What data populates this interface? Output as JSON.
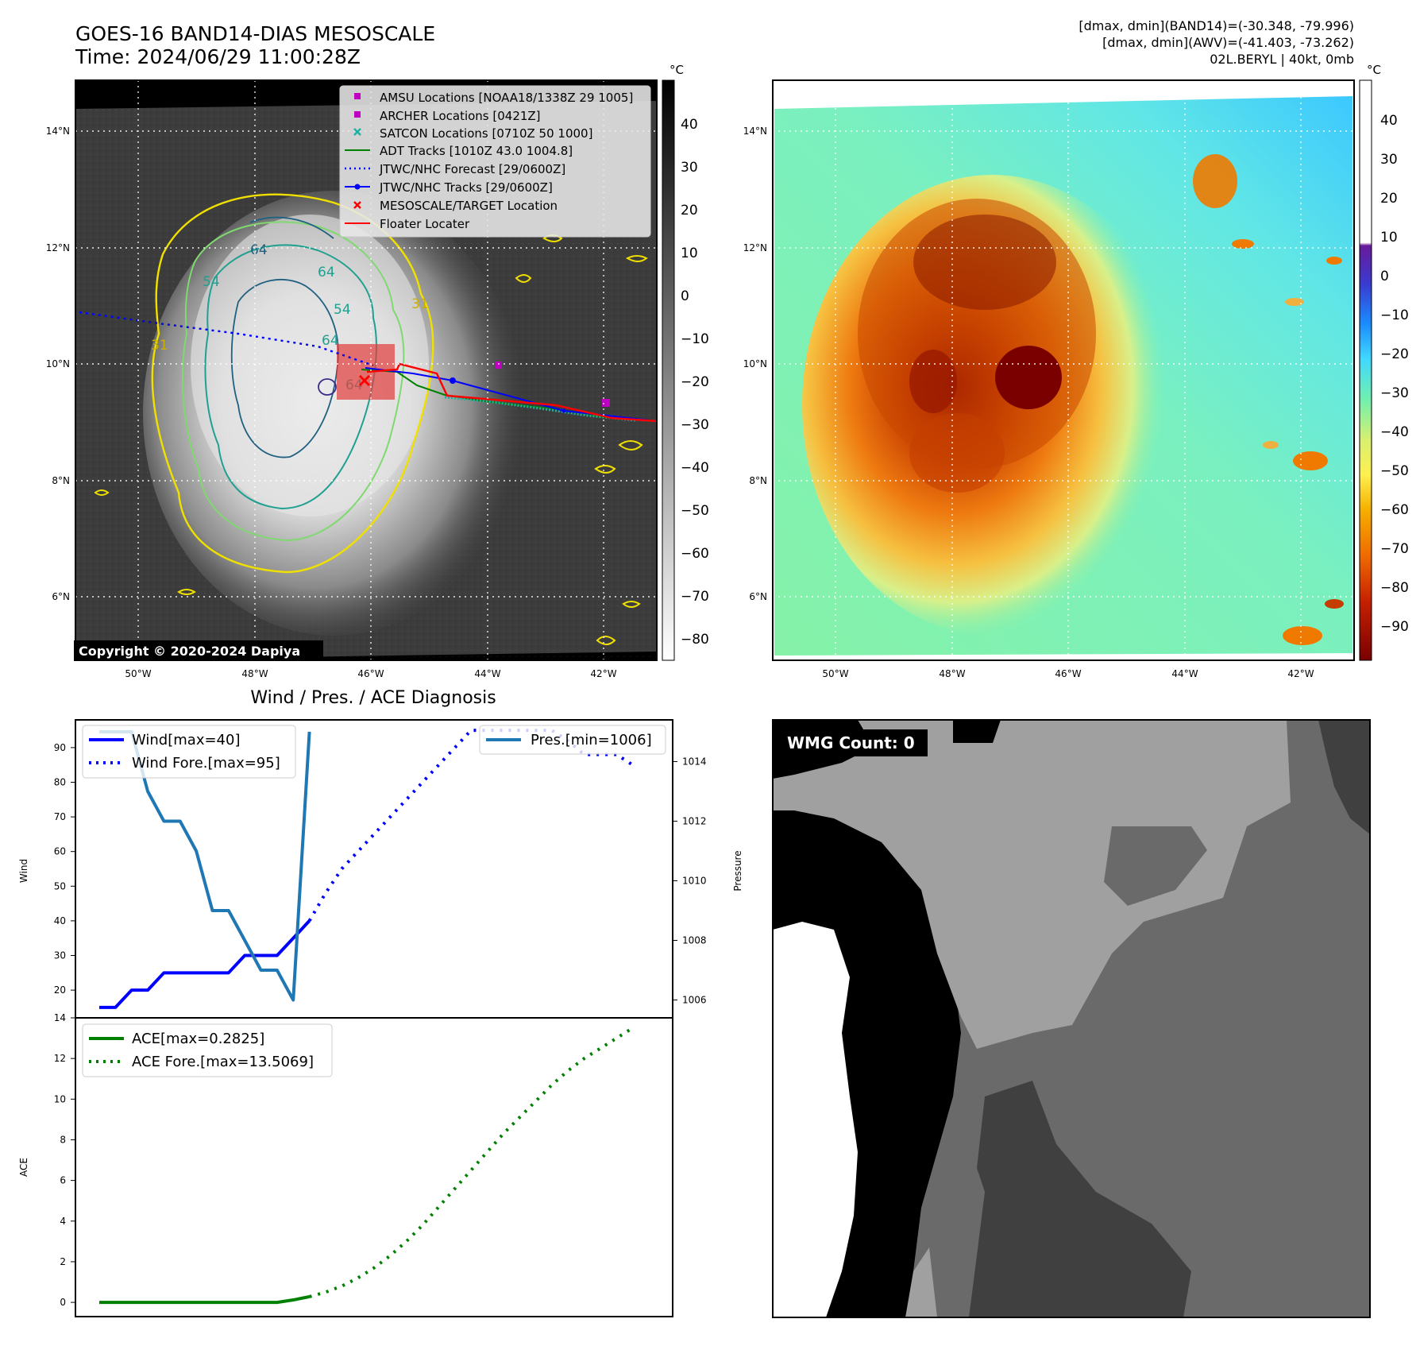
{
  "header": {
    "title_line1": "GOES-16 BAND14-DIAS MESOSCALE",
    "title_line2": "Time: 2024/06/29 11:00:28Z",
    "info_line1": "[dmax, dmin](BAND14)=(-30.348, -79.996)",
    "info_line2": "[dmax, dmin](AWV)=(-41.403, -73.262)",
    "info_line3": "02L.BERYL | 40kt, 0mb"
  },
  "copyright": "Copyright © 2020-2024 Dapiya",
  "map_axes": {
    "lon_ticks": [
      "50°W",
      "48°W",
      "46°W",
      "44°W",
      "42°W"
    ],
    "lat_ticks": [
      "14°N",
      "12°N",
      "10°N",
      "8°N",
      "6°N"
    ]
  },
  "colorbar_gray": {
    "unit": "°C",
    "ticks": [
      "40",
      "30",
      "20",
      "10",
      "0",
      "−10",
      "−20",
      "−30",
      "−40",
      "−50",
      "−60",
      "−70",
      "−80"
    ]
  },
  "colorbar_color": {
    "unit": "°C",
    "ticks": [
      "40",
      "30",
      "20",
      "10",
      "0",
      "−10",
      "−20",
      "−30",
      "−40",
      "−50",
      "−60",
      "−70",
      "−80",
      "−90"
    ],
    "colors": [
      "#7a0000",
      "#c43c00",
      "#f07a00",
      "#f6c000",
      "#fff060",
      "#a6f27a",
      "#5cf0b0",
      "#40c8ff",
      "#1a6cff",
      "#3a1ab0",
      "#6a1a9a",
      "#ffffff",
      "#000000"
    ]
  },
  "map_legend": [
    {
      "label": "AMSU Locations [NOAA18/1338Z 29 1005]",
      "marker": "square",
      "color": "#c000c0"
    },
    {
      "label": "ARCHER Locations [0421Z]",
      "marker": "square",
      "color": "#c000c0"
    },
    {
      "label": "SATCON Locations [0710Z 50 1000]",
      "marker": "x",
      "color": "#20b0a0"
    },
    {
      "label": "ADT Tracks [1010Z 43.0 1004.8]",
      "marker": "line",
      "color": "#008000"
    },
    {
      "label": "JTWC/NHC Forecast [29/0600Z]",
      "marker": "dotted",
      "color": "#0000ff"
    },
    {
      "label": "JTWC/NHC Tracks [29/0600Z]",
      "marker": "line-dot",
      "color": "#0000ff"
    },
    {
      "label": "MESOSCALE/TARGET Location",
      "marker": "x",
      "color": "#ff0000"
    },
    {
      "label": "Floater Locater",
      "marker": "line",
      "color": "#ff0000"
    }
  ],
  "contour_labels": [
    "64",
    "54",
    "64",
    "64",
    "31",
    "64",
    "54",
    "31"
  ],
  "diagnosis_title": "Wind / Pres. / ACE Diagnosis",
  "wmg_label": "WMG Count: 0",
  "chart_data": [
    {
      "type": "line",
      "title": "",
      "ylabel": "Wind",
      "ylim": [
        12,
        98
      ],
      "yticks": [
        20,
        30,
        40,
        50,
        60,
        70,
        80,
        90
      ],
      "x_range": [
        0,
        34
      ],
      "series": [
        {
          "name": "Wind[max=40]",
          "style": "solid",
          "color": "#0000ff",
          "x": [
            0,
            1,
            2,
            3,
            4,
            5,
            6,
            7,
            8,
            9,
            10,
            11,
            12,
            13
          ],
          "values": [
            15,
            15,
            20,
            20,
            25,
            25,
            25,
            25,
            25,
            30,
            30,
            30,
            35,
            40
          ]
        },
        {
          "name": "Wind Fore.[max=95]",
          "style": "dotted",
          "color": "#0000ff",
          "x": [
            13,
            14,
            15,
            16,
            17,
            18,
            19,
            20,
            21,
            22,
            23,
            24,
            25,
            26,
            27,
            28,
            29,
            30,
            31,
            32,
            33
          ],
          "values": [
            40,
            48,
            55,
            60,
            65,
            70,
            75,
            80,
            85,
            90,
            95,
            95,
            95,
            95,
            95,
            95,
            92,
            88,
            88,
            88,
            85
          ]
        }
      ]
    },
    {
      "type": "line",
      "ylabel": "Pressure",
      "ylim": [
        1005.4,
        1015.4
      ],
      "yticks": [
        1006,
        1008,
        1010,
        1012,
        1014
      ],
      "x_range": [
        0,
        34
      ],
      "series": [
        {
          "name": "Pres.[min=1006]",
          "style": "solid",
          "color": "#1f77b4",
          "x": [
            0,
            1,
            2,
            3,
            4,
            5,
            6,
            7,
            8,
            9,
            10,
            11,
            12,
            13
          ],
          "values": [
            1015,
            1015,
            1015,
            1013,
            1012,
            1012,
            1011,
            1009,
            1009,
            1008,
            1007,
            1007,
            1006,
            1015
          ]
        }
      ]
    },
    {
      "type": "line",
      "ylabel": "ACE",
      "ylim": [
        -0.7,
        14
      ],
      "yticks": [
        0,
        2,
        4,
        6,
        8,
        10,
        12,
        14
      ],
      "x_range": [
        0,
        34
      ],
      "series": [
        {
          "name": "ACE[max=0.2825]",
          "style": "solid",
          "color": "#008000",
          "x": [
            0,
            1,
            2,
            3,
            4,
            5,
            6,
            7,
            8,
            9,
            10,
            11,
            12,
            13
          ],
          "values": [
            0,
            0,
            0,
            0,
            0,
            0,
            0,
            0,
            0,
            0,
            0,
            0,
            0.12,
            0.28
          ]
        },
        {
          "name": "ACE Fore.[max=13.5069]",
          "style": "dotted",
          "color": "#008000",
          "x": [
            13,
            14,
            15,
            16,
            17,
            18,
            19,
            20,
            21,
            22,
            23,
            24,
            25,
            26,
            27,
            28,
            29,
            30,
            31,
            32,
            33
          ],
          "values": [
            0.28,
            0.5,
            0.8,
            1.2,
            1.7,
            2.3,
            3.0,
            3.8,
            4.7,
            5.6,
            6.5,
            7.4,
            8.3,
            9.1,
            9.9,
            10.7,
            11.4,
            12.0,
            12.5,
            13.0,
            13.5
          ]
        }
      ]
    }
  ]
}
